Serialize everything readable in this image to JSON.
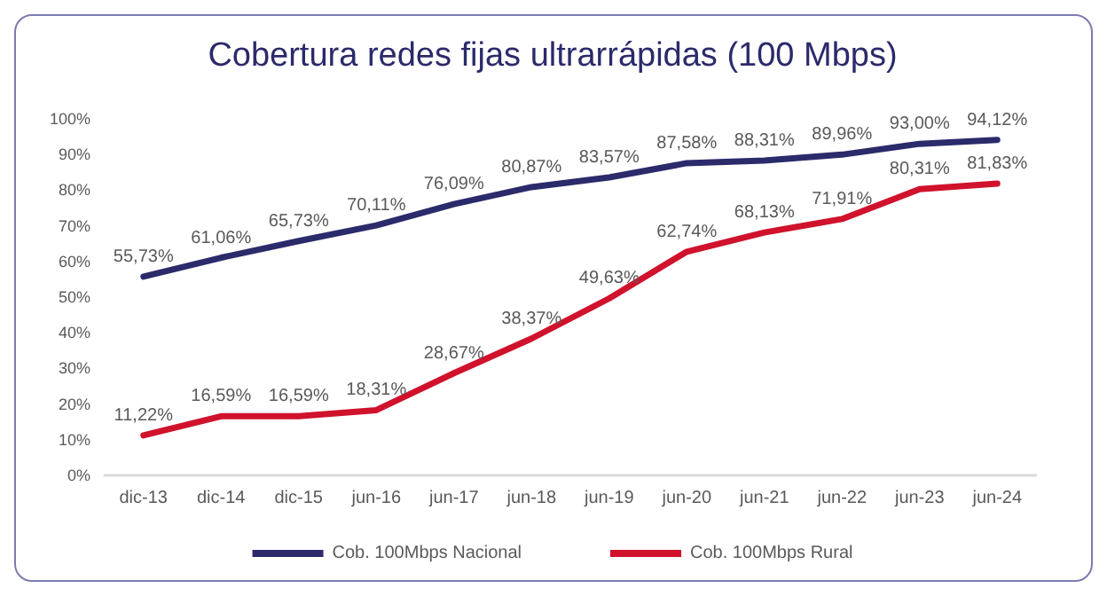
{
  "chart_data": {
    "type": "line",
    "title": "Cobertura redes fijas ultrarrápidas (100 Mbps)",
    "categories": [
      "dic-13",
      "dic-14",
      "dic-15",
      "jun-16",
      "jun-17",
      "jun-18",
      "jun-19",
      "jun-20",
      "jun-21",
      "jun-22",
      "jun-23",
      "jun-24"
    ],
    "series": [
      {
        "name": "Cob. 100Mbps Nacional",
        "color": "#2b2a6b",
        "values": [
          55.73,
          61.06,
          65.73,
          70.11,
          76.09,
          80.87,
          83.57,
          87.58,
          88.31,
          89.96,
          93.0,
          94.12
        ],
        "value_labels": [
          "55,73%",
          "61,06%",
          "65,73%",
          "70,11%",
          "76,09%",
          "80,87%",
          "83,57%",
          "87,58%",
          "88,31%",
          "89,96%",
          "93,00%",
          "94,12%"
        ]
      },
      {
        "name": "Cob. 100Mbps Rural",
        "color": "#d0122c",
        "values": [
          11.22,
          16.59,
          16.59,
          18.31,
          28.67,
          38.37,
          49.63,
          62.74,
          68.13,
          71.91,
          80.31,
          81.83
        ],
        "value_labels": [
          "11,22%",
          "16,59%",
          "16,59%",
          "18,31%",
          "28,67%",
          "38,37%",
          "49,63%",
          "62,74%",
          "68,13%",
          "71,91%",
          "80,31%",
          "81,83%"
        ]
      }
    ],
    "ylim": [
      0,
      100
    ],
    "yticks": [
      {
        "value": 0,
        "label": "0%"
      },
      {
        "value": 10,
        "label": "10%"
      },
      {
        "value": 20,
        "label": "20%"
      },
      {
        "value": 30,
        "label": "30%"
      },
      {
        "value": 40,
        "label": "40%"
      },
      {
        "value": 50,
        "label": "50%"
      },
      {
        "value": 60,
        "label": "60%"
      },
      {
        "value": 70,
        "label": "70%"
      },
      {
        "value": 80,
        "label": "80%"
      },
      {
        "value": 90,
        "label": "90%"
      },
      {
        "value": 100,
        "label": "100%"
      }
    ],
    "grid": false,
    "legend": "bottom",
    "marker": "none",
    "line_style": "solid"
  }
}
